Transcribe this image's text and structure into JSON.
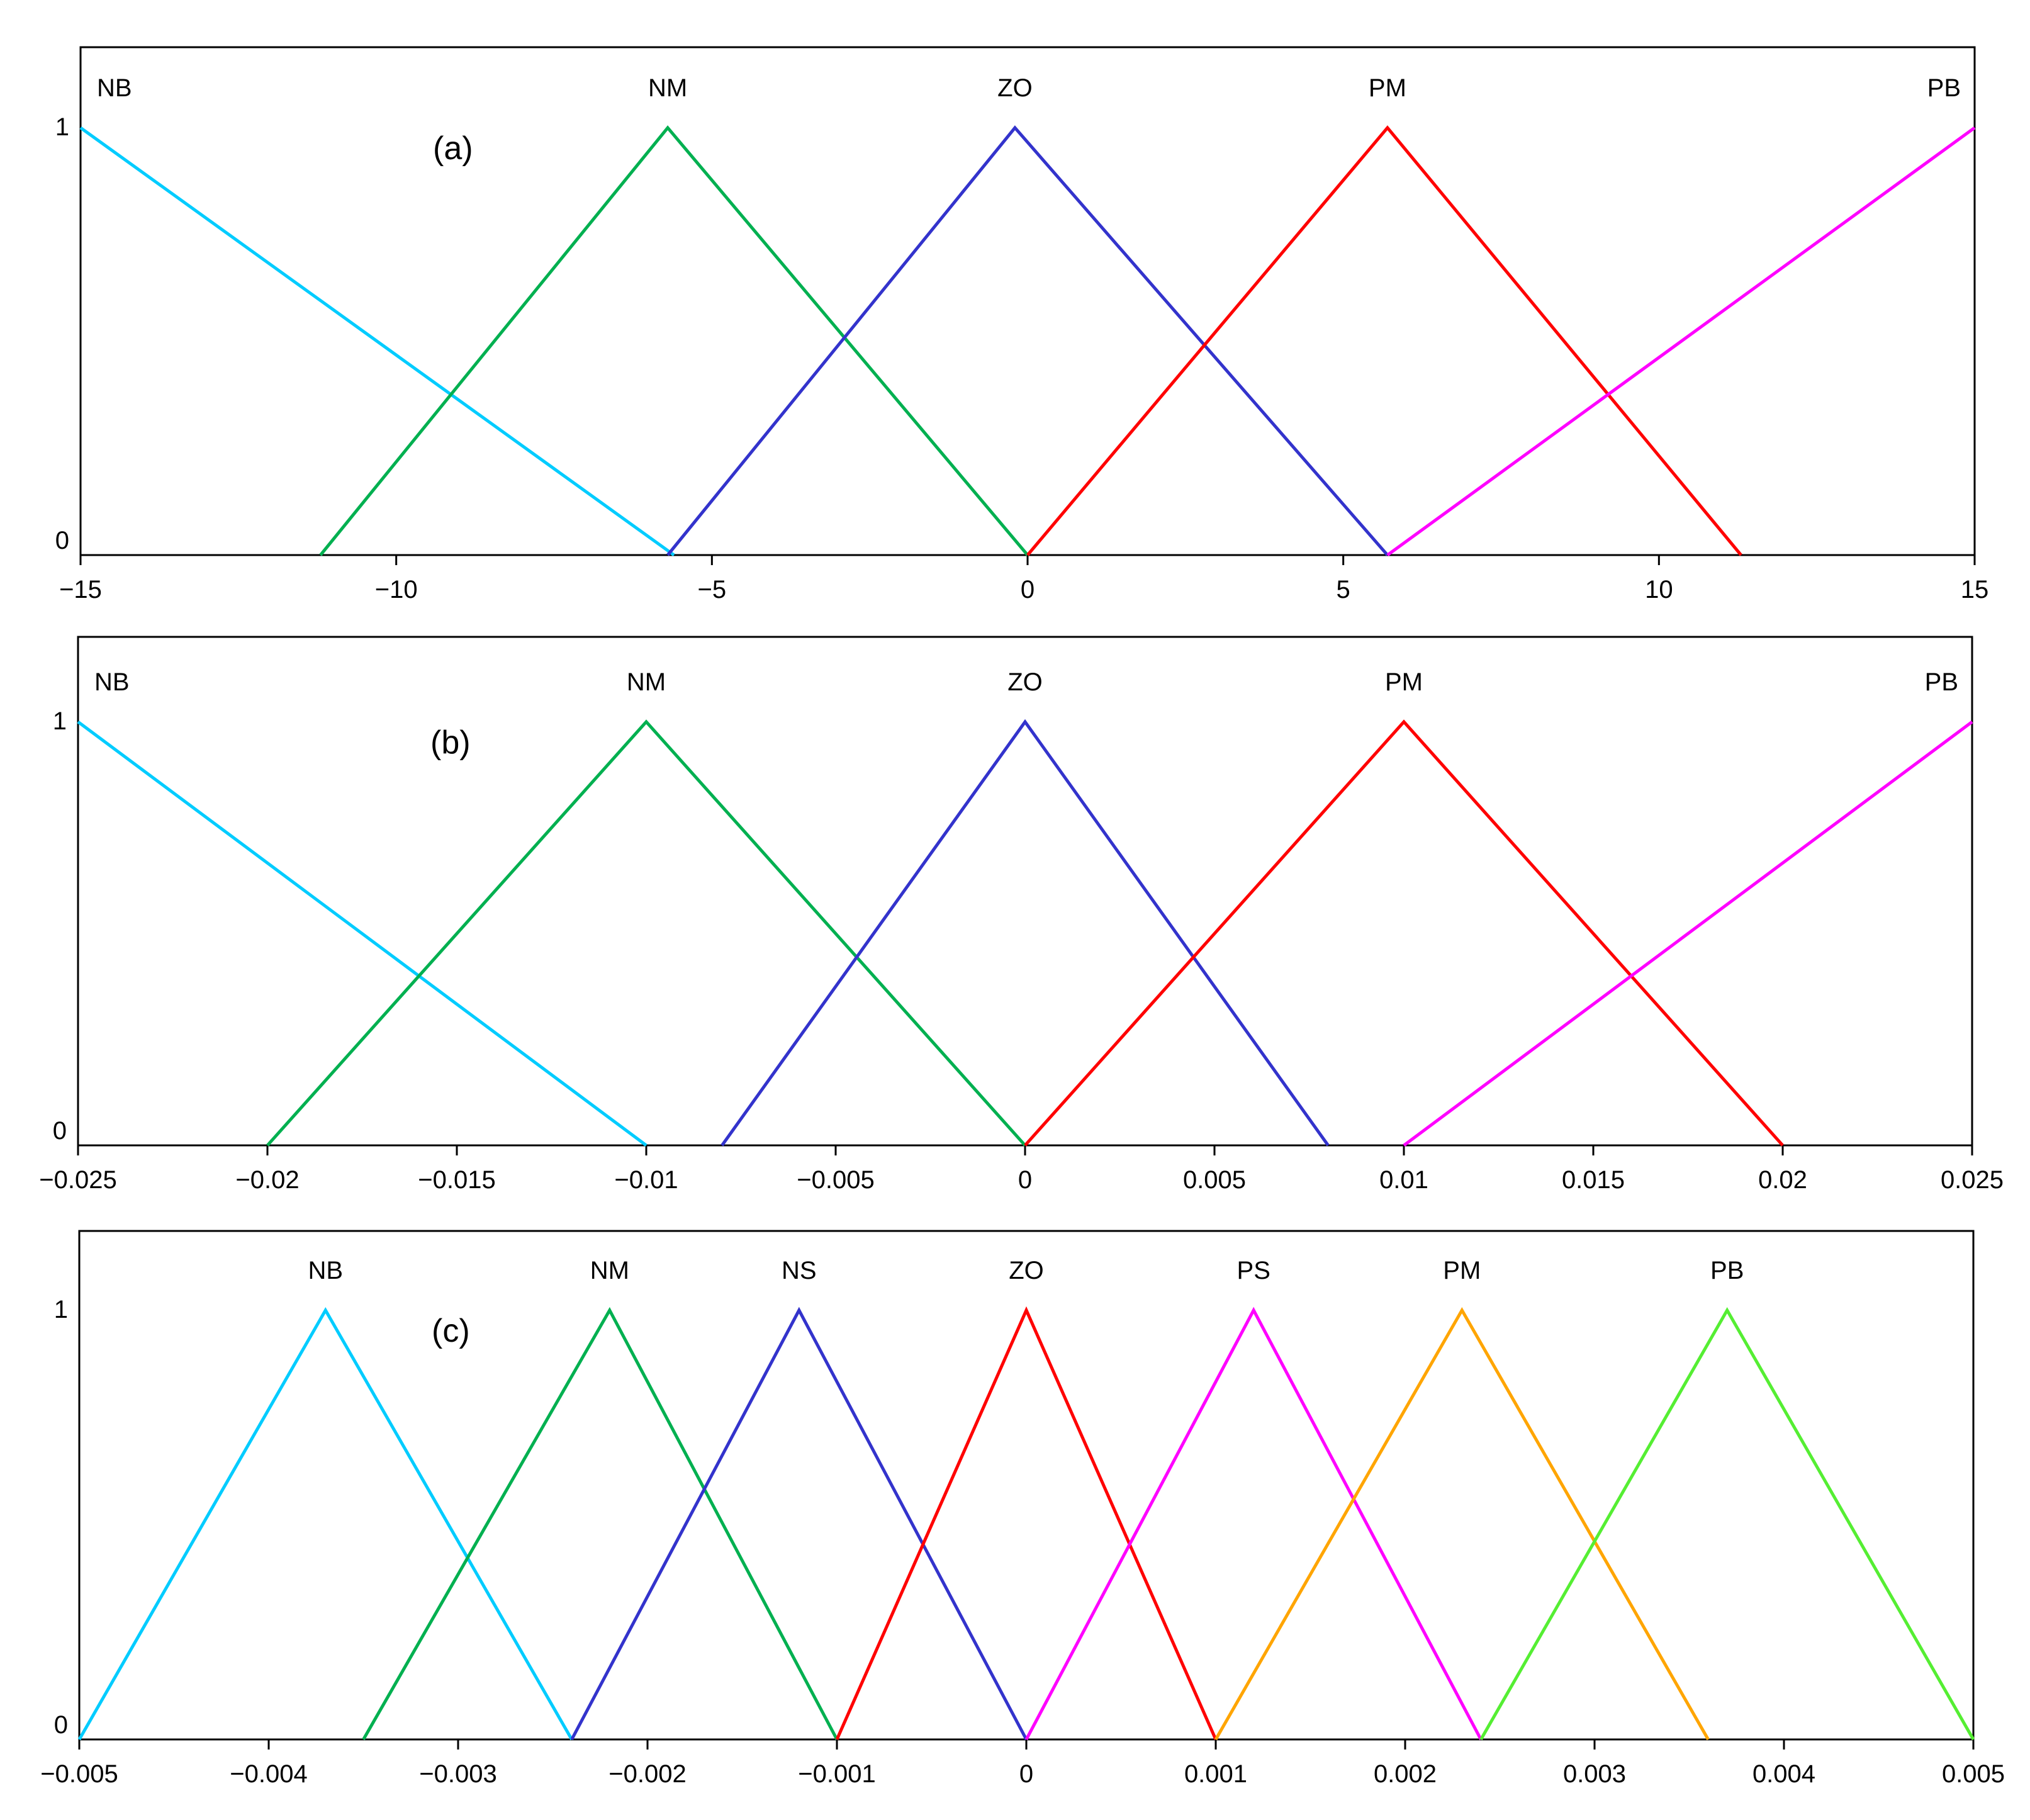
{
  "chart_data": [
    {
      "type": "line",
      "panel_label": "(a)",
      "xlim": [
        -15,
        15
      ],
      "ylim": [
        0,
        1
      ],
      "x_ticks": [
        -15,
        -10,
        -5,
        0,
        5,
        10,
        15
      ],
      "x_tick_labels": [
        "−15",
        "−10",
        "−5",
        "0",
        "5",
        "10",
        "15"
      ],
      "y_tick_labels": [
        "0",
        "1"
      ],
      "series": [
        {
          "name": "NB",
          "color": "#00ccff",
          "points": [
            [
              -15,
              1
            ],
            [
              -5.6,
              0
            ]
          ]
        },
        {
          "name": "NM",
          "color": "#00b050",
          "points": [
            [
              -11.2,
              0
            ],
            [
              -5.7,
              1
            ],
            [
              0,
              0
            ]
          ]
        },
        {
          "name": "ZO",
          "color": "#3333cc",
          "points": [
            [
              -5.7,
              0
            ],
            [
              -0.2,
              1
            ],
            [
              5.7,
              0
            ]
          ]
        },
        {
          "name": "PM",
          "color": "#ff0000",
          "points": [
            [
              0,
              0
            ],
            [
              5.7,
              1
            ],
            [
              11.3,
              0
            ]
          ]
        },
        {
          "name": "PB",
          "color": "#ff00ff",
          "points": [
            [
              5.7,
              0
            ],
            [
              15,
              1
            ]
          ]
        }
      ]
    },
    {
      "type": "line",
      "panel_label": "(b)",
      "xlim": [
        -0.025,
        0.025
      ],
      "ylim": [
        0,
        1
      ],
      "x_ticks": [
        -0.025,
        -0.02,
        -0.015,
        -0.01,
        -0.005,
        0,
        0.005,
        0.01,
        0.015,
        0.02,
        0.025
      ],
      "x_tick_labels": [
        "−0.025",
        "−0.02",
        "−0.015",
        "−0.01",
        "−0.005",
        "0",
        "0.005",
        "0.01",
        "0.015",
        "0.02",
        "0.025"
      ],
      "y_tick_labels": [
        "0",
        "1"
      ],
      "series": [
        {
          "name": "NB",
          "color": "#00ccff",
          "points": [
            [
              -0.025,
              1
            ],
            [
              -0.01,
              0
            ]
          ]
        },
        {
          "name": "NM",
          "color": "#00b050",
          "points": [
            [
              -0.02,
              0
            ],
            [
              -0.01,
              1
            ],
            [
              0,
              0
            ]
          ]
        },
        {
          "name": "ZO",
          "color": "#3333cc",
          "points": [
            [
              -0.008,
              0
            ],
            [
              0,
              1
            ],
            [
              0.008,
              0
            ]
          ]
        },
        {
          "name": "PM",
          "color": "#ff0000",
          "points": [
            [
              0,
              0
            ],
            [
              0.01,
              1
            ],
            [
              0.02,
              0
            ]
          ]
        },
        {
          "name": "PB",
          "color": "#ff00ff",
          "points": [
            [
              0.01,
              0
            ],
            [
              0.025,
              1
            ]
          ]
        }
      ]
    },
    {
      "type": "line",
      "panel_label": "(c)",
      "xlim": [
        -0.005,
        0.005
      ],
      "ylim": [
        0,
        1
      ],
      "x_ticks": [
        -0.005,
        -0.004,
        -0.003,
        -0.002,
        -0.001,
        0,
        0.001,
        0.002,
        0.003,
        0.004,
        0.005
      ],
      "x_tick_labels": [
        "−0.005",
        "−0.004",
        "−0.003",
        "−0.002",
        "−0.001",
        "0",
        "0.001",
        "0.002",
        "0.003",
        "0.004",
        "0.005"
      ],
      "y_tick_labels": [
        "0",
        "1"
      ],
      "series": [
        {
          "name": "NB",
          "color": "#00ccff",
          "points": [
            [
              -0.005,
              0
            ],
            [
              -0.0037,
              1
            ],
            [
              -0.0024,
              0
            ]
          ]
        },
        {
          "name": "NM",
          "color": "#00b050",
          "points": [
            [
              -0.0035,
              0
            ],
            [
              -0.0022,
              1
            ],
            [
              -0.001,
              0
            ]
          ]
        },
        {
          "name": "NS",
          "color": "#3333cc",
          "points": [
            [
              -0.0024,
              0
            ],
            [
              -0.0012,
              1
            ],
            [
              0,
              0
            ]
          ]
        },
        {
          "name": "ZO",
          "color": "#ff0000",
          "points": [
            [
              -0.001,
              0
            ],
            [
              0,
              1
            ],
            [
              0.001,
              0
            ]
          ]
        },
        {
          "name": "PS",
          "color": "#ff00ff",
          "points": [
            [
              0,
              0
            ],
            [
              0.0012,
              1
            ],
            [
              0.0024,
              0
            ]
          ]
        },
        {
          "name": "PM",
          "color": "#ffa500",
          "points": [
            [
              0.001,
              0
            ],
            [
              0.0023,
              1
            ],
            [
              0.0036,
              0
            ]
          ]
        },
        {
          "name": "PB",
          "color": "#55ee33",
          "points": [
            [
              0.0024,
              0
            ],
            [
              0.0037,
              1
            ],
            [
              0.005,
              0
            ]
          ]
        }
      ]
    }
  ]
}
